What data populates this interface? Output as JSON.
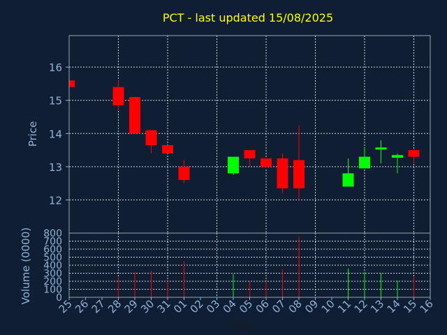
{
  "chart_data": {
    "type": "candlestick",
    "title": "PCT - last updated 15/08/2025",
    "xlabel": "Day",
    "colors": {
      "background": "#0f1e33",
      "title": "#ffff00",
      "axis_text": "#8fb3d9",
      "up": "#00ff00",
      "down": "#ff0000",
      "grid": "#cfd8e3"
    },
    "price_panel": {
      "ylabel": "Price",
      "ylim": [
        11.0,
        16.95
      ],
      "yticks": [
        12,
        13,
        14,
        15,
        16
      ],
      "grid": true
    },
    "volume_panel": {
      "ylabel": "Volume (0000)",
      "ylim": [
        0,
        800
      ],
      "yticks": [
        0,
        100,
        200,
        300,
        400,
        500,
        600,
        700,
        800
      ],
      "grid": true
    },
    "x_tick_labels": [
      "25",
      "26",
      "27",
      "28",
      "29",
      "30",
      "31",
      "01",
      "02",
      "03",
      "04",
      "05",
      "06",
      "07",
      "08",
      "09",
      "10",
      "11",
      "12",
      "13",
      "14",
      "15",
      "16"
    ],
    "candles": [
      {
        "day": "25",
        "open": 15.6,
        "high": 15.6,
        "low": 15.4,
        "close": 15.4,
        "volume": 0
      },
      {
        "day": "28",
        "open": 15.4,
        "high": 15.6,
        "low": 14.7,
        "close": 14.85,
        "volume": 250
      },
      {
        "day": "29",
        "open": 15.1,
        "high": 15.1,
        "low": 14.0,
        "close": 14.0,
        "volume": 320
      },
      {
        "day": "30",
        "open": 14.1,
        "high": 14.1,
        "low": 13.4,
        "close": 13.65,
        "volume": 330
      },
      {
        "day": "31",
        "open": 13.65,
        "high": 13.65,
        "low": 13.4,
        "close": 13.4,
        "volume": 200
      },
      {
        "day": "01",
        "open": 13.0,
        "high": 13.2,
        "low": 12.5,
        "close": 12.6,
        "volume": 450
      },
      {
        "day": "04",
        "open": 12.8,
        "high": 13.3,
        "low": 12.75,
        "close": 13.3,
        "volume": 290
      },
      {
        "day": "05",
        "open": 13.5,
        "high": 13.5,
        "low": 13.0,
        "close": 13.25,
        "volume": 200
      },
      {
        "day": "06",
        "open": 13.25,
        "high": 13.25,
        "low": 12.95,
        "close": 13.0,
        "volume": 200
      },
      {
        "day": "07",
        "open": 13.25,
        "high": 13.4,
        "low": 12.2,
        "close": 12.35,
        "volume": 350
      },
      {
        "day": "08",
        "open": 13.2,
        "high": 14.25,
        "low": 12.0,
        "close": 12.35,
        "volume": 760
      },
      {
        "day": "11",
        "open": 12.4,
        "high": 13.25,
        "low": 12.4,
        "close": 12.8,
        "volume": 360
      },
      {
        "day": "12",
        "open": 12.95,
        "high": 13.6,
        "low": 12.95,
        "close": 13.3,
        "volume": 320
      },
      {
        "day": "13",
        "open": 13.52,
        "high": 13.8,
        "low": 13.1,
        "close": 13.58,
        "volume": 300
      },
      {
        "day": "14",
        "open": 13.27,
        "high": 13.4,
        "low": 12.8,
        "close": 13.35,
        "volume": 210
      },
      {
        "day": "15",
        "open": 13.5,
        "high": 13.5,
        "low": 13.1,
        "close": 13.3,
        "volume": 250
      }
    ]
  }
}
